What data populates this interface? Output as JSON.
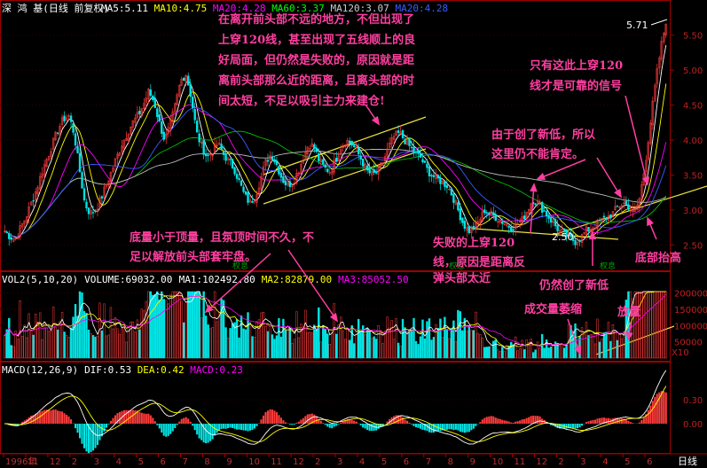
{
  "chart_data": [
    {
      "type": "candlestick",
      "panel": "price",
      "header": {
        "stock": "深 鸿 基(日线 前复权)",
        "indicators": [
          {
            "label": "MA5:5.11",
            "color": "#ffffff"
          },
          {
            "label": "MA10:4.75",
            "color": "#ffff00"
          },
          {
            "label": "MA20:4.28",
            "color": "#ff00ff"
          },
          {
            "label": "MA60:3.37",
            "color": "#00ff00"
          },
          {
            "label": "MA120:3.07",
            "color": "#cccccc"
          },
          {
            "label": "MA20:4.28",
            "color": "#3a5bff"
          }
        ]
      },
      "y_ticks": [
        "5.50",
        "5.00",
        "4.50",
        "4.00",
        "3.50",
        "3.00",
        "2.50"
      ],
      "ylim": [
        2.2,
        5.75
      ],
      "labels": {
        "high": "5.71",
        "low": "2.50",
        "marker1": "权息",
        "marker2": "权息",
        "marker3": "权息"
      },
      "close_series": [
        2.7,
        2.62,
        2.58,
        2.75,
        2.9,
        3.1,
        3.3,
        3.55,
        3.75,
        3.95,
        4.15,
        4.3,
        4.35,
        4.1,
        3.6,
        3.1,
        2.95,
        3.0,
        3.15,
        3.35,
        3.55,
        3.75,
        3.95,
        4.1,
        4.25,
        4.35,
        4.5,
        4.7,
        4.55,
        4.25,
        4.0,
        4.2,
        4.5,
        4.85,
        4.95,
        4.6,
        4.1,
        3.9,
        3.75,
        3.85,
        3.95,
        3.8,
        3.7,
        3.6,
        3.4,
        3.2,
        3.1,
        3.2,
        3.45,
        3.7,
        3.8,
        3.65,
        3.45,
        3.35,
        3.4,
        3.55,
        3.75,
        3.95,
        3.9,
        3.7,
        3.6,
        3.55,
        3.7,
        3.9,
        4.0,
        3.95,
        3.85,
        3.7,
        3.55,
        3.5,
        3.55,
        3.7,
        3.9,
        4.05,
        4.1,
        4.0,
        3.9,
        3.8,
        3.75,
        3.6,
        3.5,
        3.45,
        3.4,
        3.35,
        3.2,
        3.0,
        2.8,
        2.7,
        2.75,
        2.85,
        3.0,
        2.95,
        2.9,
        2.85,
        2.8,
        2.75,
        2.8,
        2.85,
        3.0,
        3.15,
        3.1,
        3.0,
        2.9,
        2.8,
        2.7,
        2.65,
        2.6,
        2.55,
        2.6,
        2.7,
        2.75,
        2.8,
        2.85,
        2.9,
        2.95,
        3.05,
        3.1,
        3.05,
        2.95,
        3.15,
        3.6,
        4.2,
        4.8,
        5.3,
        5.71
      ],
      "annotations": [
        "在离开前头部不远的地方，不但出现了",
        "上穿120线，甚至出现了五线顺上的良",
        "好局面，但仍然是失败的，原因就是距",
        "离前头部那么近的距离，且离头部的时",
        "间太短，不足以吸引主力来建仓!",
        "只有这此上穿120",
        "线才是可靠的信号",
        "由于创了新低，所以",
        "这里仍不能肯定。",
        "失败的上穿120",
        "线，原因是距离反",
        "弹头部太近",
        "底部抬高"
      ]
    },
    {
      "type": "bar",
      "panel": "volume",
      "header": [
        {
          "label": "VOL2(5,10,20)",
          "color": "#ffffff"
        },
        {
          "label": "VOLUME:69032.00",
          "color": "#ffffff"
        },
        {
          "label": "MA1:102492.80",
          "color": "#ffffff"
        },
        {
          "label": "MA2:82879.00",
          "color": "#ffff00"
        },
        {
          "label": "MA3:85052.50",
          "color": "#ff00ff"
        }
      ],
      "y_ticks": [
        "200000",
        "150000",
        "100000",
        "50000"
      ],
      "unit": "X10",
      "annotations": [
        "底量小于顶量，且氛顶时间不久，不",
        "足以解放前头部套牢盘。",
        "仍然创了新低",
        "成交量萎缩",
        "放量"
      ]
    },
    {
      "type": "line",
      "panel": "macd",
      "header": [
        {
          "label": "MACD(12,26,9)",
          "color": "#ffffff"
        },
        {
          "label": "DIF:0.53",
          "color": "#ffffff"
        },
        {
          "label": "DEA:0.42",
          "color": "#ffff00"
        },
        {
          "label": "MACD:0.23",
          "color": "#ff00ff"
        }
      ],
      "y_ticks": [
        "0.30",
        "0.00"
      ]
    }
  ],
  "x_axis": {
    "ticks": [
      "1996年",
      "11",
      "12",
      "2",
      "3",
      "4",
      "5",
      "6",
      "7",
      "8",
      "9",
      "10",
      "11",
      "12",
      "2",
      "3",
      "4",
      "5",
      "6",
      "7",
      "8",
      "9",
      "10",
      "11",
      "12",
      "2",
      "3",
      "4",
      "5",
      "6"
    ],
    "period_label": "日线"
  }
}
